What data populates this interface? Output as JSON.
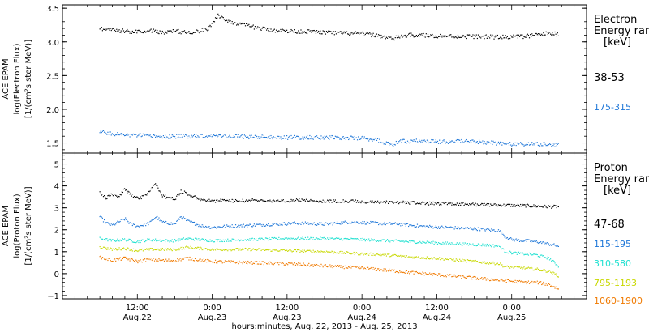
{
  "chart_data": {
    "type": "scatter",
    "x_axis": {
      "label": "hours:minutes, Aug. 22, 2013 - Aug. 25, 2013",
      "range_hours": [
        0,
        84
      ],
      "data_start_hour": 6.0,
      "data_end_hour": 79.5,
      "ticks": [
        {
          "hour": 12,
          "time": "12:00",
          "date": "Aug.22"
        },
        {
          "hour": 24,
          "time": "0:00",
          "date": "Aug.23"
        },
        {
          "hour": 36,
          "time": "12:00",
          "date": "Aug.23"
        },
        {
          "hour": 48,
          "time": "0:00",
          "date": "Aug.24"
        },
        {
          "hour": 60,
          "time": "12:00",
          "date": "Aug.24"
        },
        {
          "hour": 72,
          "time": "0:00",
          "date": "Aug.25"
        }
      ]
    },
    "panels": [
      {
        "id": "electron",
        "ylabel_lines": [
          "ACE EPAM",
          "log(Electron Flux)",
          "[1/(cm²s ster MeV)]"
        ],
        "ylim": [
          1.35,
          3.55
        ],
        "yticks": [
          "1.5",
          "2.0",
          "2.5",
          "3.0",
          "3.5"
        ],
        "ytick_values": [
          1.5,
          2.0,
          2.5,
          3.0,
          3.5
        ],
        "legend_title": "Electron",
        "legend_subtitle": "Energy ran",
        "legend_unit": "[keV]",
        "series": [
          {
            "name": "38-53",
            "color": "#000000",
            "noise": 0.03,
            "points": [
              [
                6,
                3.2
              ],
              [
                8,
                3.18
              ],
              [
                10,
                3.16
              ],
              [
                12,
                3.15
              ],
              [
                14,
                3.17
              ],
              [
                16,
                3.14
              ],
              [
                18,
                3.16
              ],
              [
                20,
                3.14
              ],
              [
                22,
                3.16
              ],
              [
                23.5,
                3.2
              ],
              [
                24.3,
                3.32
              ],
              [
                25,
                3.4
              ],
              [
                26,
                3.33
              ],
              [
                28,
                3.27
              ],
              [
                30,
                3.23
              ],
              [
                33,
                3.18
              ],
              [
                36,
                3.16
              ],
              [
                40,
                3.15
              ],
              [
                44,
                3.13
              ],
              [
                48,
                3.12
              ],
              [
                50,
                3.1
              ],
              [
                52,
                3.07
              ],
              [
                53,
                3.04
              ],
              [
                54,
                3.08
              ],
              [
                56,
                3.1
              ],
              [
                60,
                3.09
              ],
              [
                64,
                3.08
              ],
              [
                66,
                3.08
              ],
              [
                70,
                3.07
              ],
              [
                74,
                3.08
              ],
              [
                76,
                3.1
              ],
              [
                78,
                3.13
              ],
              [
                79.5,
                3.11
              ]
            ]
          },
          {
            "name": "175-315",
            "color": "#1f77d8",
            "noise": 0.03,
            "points": [
              [
                6,
                1.68
              ],
              [
                8,
                1.63
              ],
              [
                12,
                1.61
              ],
              [
                16,
                1.59
              ],
              [
                20,
                1.6
              ],
              [
                24,
                1.61
              ],
              [
                30,
                1.59
              ],
              [
                36,
                1.58
              ],
              [
                42,
                1.58
              ],
              [
                48,
                1.57
              ],
              [
                50,
                1.55
              ],
              [
                52,
                1.5
              ],
              [
                53,
                1.47
              ],
              [
                54,
                1.52
              ],
              [
                56,
                1.53
              ],
              [
                60,
                1.52
              ],
              [
                64,
                1.52
              ],
              [
                68,
                1.51
              ],
              [
                72,
                1.48
              ],
              [
                76,
                1.48
              ],
              [
                79.5,
                1.47
              ]
            ]
          }
        ]
      },
      {
        "id": "proton",
        "ylabel_lines": [
          "ACE EPAM",
          "log(Proton Flux)",
          "[1/(cm²s ster MeV)]"
        ],
        "ylim": [
          -1.15,
          5.5
        ],
        "yticks": [
          "−1",
          "0",
          "1",
          "2",
          "3",
          "4",
          "5"
        ],
        "ytick_values": [
          -1,
          0,
          1,
          2,
          3,
          4,
          5
        ],
        "legend_title": "Proton",
        "legend_subtitle": "Energy ran",
        "legend_unit": "[keV]",
        "series": [
          {
            "name": "47-68",
            "color": "#000000",
            "noise": 0.07,
            "points": [
              [
                6,
                3.7
              ],
              [
                7,
                3.45
              ],
              [
                8,
                3.6
              ],
              [
                9,
                3.5
              ],
              [
                10,
                3.85
              ],
              [
                11,
                3.6
              ],
              [
                12,
                3.45
              ],
              [
                13,
                3.5
              ],
              [
                14,
                3.8
              ],
              [
                15,
                4.1
              ],
              [
                16,
                3.55
              ],
              [
                18,
                3.4
              ],
              [
                19,
                3.75
              ],
              [
                20,
                3.65
              ],
              [
                21,
                3.5
              ],
              [
                22,
                3.4
              ],
              [
                24,
                3.3
              ],
              [
                26,
                3.35
              ],
              [
                28,
                3.3
              ],
              [
                30,
                3.35
              ],
              [
                34,
                3.3
              ],
              [
                38,
                3.35
              ],
              [
                42,
                3.3
              ],
              [
                46,
                3.3
              ],
              [
                50,
                3.25
              ],
              [
                54,
                3.25
              ],
              [
                58,
                3.2
              ],
              [
                62,
                3.2
              ],
              [
                66,
                3.15
              ],
              [
                70,
                3.12
              ],
              [
                74,
                3.1
              ],
              [
                78,
                3.05
              ],
              [
                79.5,
                3.05
              ]
            ]
          },
          {
            "name": "115-195",
            "color": "#1f77d8",
            "noise": 0.07,
            "points": [
              [
                6,
                2.6
              ],
              [
                7,
                2.3
              ],
              [
                8,
                2.2
              ],
              [
                9,
                2.35
              ],
              [
                10,
                2.5
              ],
              [
                11,
                2.25
              ],
              [
                12,
                2.15
              ],
              [
                14,
                2.3
              ],
              [
                15,
                2.6
              ],
              [
                16,
                2.35
              ],
              [
                18,
                2.25
              ],
              [
                19,
                2.6
              ],
              [
                20,
                2.4
              ],
              [
                22,
                2.2
              ],
              [
                24,
                2.1
              ],
              [
                26,
                2.15
              ],
              [
                30,
                2.2
              ],
              [
                34,
                2.25
              ],
              [
                38,
                2.3
              ],
              [
                42,
                2.25
              ],
              [
                46,
                2.35
              ],
              [
                50,
                2.3
              ],
              [
                54,
                2.25
              ],
              [
                58,
                2.15
              ],
              [
                62,
                2.1
              ],
              [
                66,
                2.05
              ],
              [
                68,
                2.0
              ],
              [
                70,
                1.95
              ],
              [
                71,
                1.7
              ],
              [
                72,
                1.55
              ],
              [
                74,
                1.5
              ],
              [
                76,
                1.45
              ],
              [
                78,
                1.35
              ],
              [
                79.5,
                1.25
              ]
            ]
          },
          {
            "name": "310-580",
            "color": "#1fe0d0",
            "noise": 0.06,
            "points": [
              [
                6,
                1.6
              ],
              [
                8,
                1.5
              ],
              [
                10,
                1.55
              ],
              [
                12,
                1.45
              ],
              [
                14,
                1.55
              ],
              [
                16,
                1.5
              ],
              [
                18,
                1.5
              ],
              [
                20,
                1.6
              ],
              [
                24,
                1.5
              ],
              [
                30,
                1.55
              ],
              [
                36,
                1.6
              ],
              [
                42,
                1.6
              ],
              [
                48,
                1.55
              ],
              [
                52,
                1.5
              ],
              [
                56,
                1.45
              ],
              [
                60,
                1.4
              ],
              [
                64,
                1.35
              ],
              [
                68,
                1.3
              ],
              [
                70,
                1.25
              ],
              [
                71,
                1.0
              ],
              [
                72,
                0.95
              ],
              [
                74,
                0.9
              ],
              [
                76,
                0.85
              ],
              [
                78,
                0.7
              ],
              [
                79.5,
                0.35
              ]
            ]
          },
          {
            "name": "795-1193",
            "color": "#c8d800",
            "noise": 0.06,
            "points": [
              [
                6,
                1.2
              ],
              [
                8,
                1.1
              ],
              [
                10,
                1.15
              ],
              [
                12,
                1.05
              ],
              [
                14,
                1.1
              ],
              [
                16,
                1.1
              ],
              [
                18,
                1.1
              ],
              [
                20,
                1.2
              ],
              [
                24,
                1.1
              ],
              [
                30,
                1.1
              ],
              [
                36,
                1.05
              ],
              [
                42,
                1.0
              ],
              [
                48,
                0.9
              ],
              [
                52,
                0.85
              ],
              [
                56,
                0.75
              ],
              [
                60,
                0.7
              ],
              [
                64,
                0.6
              ],
              [
                68,
                0.5
              ],
              [
                70,
                0.45
              ],
              [
                71,
                0.3
              ],
              [
                72,
                0.3
              ],
              [
                74,
                0.25
              ],
              [
                76,
                0.2
              ],
              [
                78,
                0.1
              ],
              [
                79.5,
                -0.1
              ]
            ]
          },
          {
            "name": "1060-1900",
            "color": "#f07a00",
            "noise": 0.07,
            "points": [
              [
                6,
                0.75
              ],
              [
                8,
                0.6
              ],
              [
                10,
                0.7
              ],
              [
                12,
                0.55
              ],
              [
                14,
                0.65
              ],
              [
                16,
                0.6
              ],
              [
                18,
                0.6
              ],
              [
                20,
                0.7
              ],
              [
                24,
                0.55
              ],
              [
                30,
                0.5
              ],
              [
                36,
                0.45
              ],
              [
                42,
                0.35
              ],
              [
                48,
                0.25
              ],
              [
                52,
                0.15
              ],
              [
                56,
                0.05
              ],
              [
                60,
                -0.05
              ],
              [
                64,
                -0.15
              ],
              [
                68,
                -0.25
              ],
              [
                70,
                -0.3
              ],
              [
                72,
                -0.35
              ],
              [
                74,
                -0.4
              ],
              [
                76,
                -0.4
              ],
              [
                78,
                -0.5
              ],
              [
                79.5,
                -0.7
              ]
            ]
          }
        ]
      }
    ]
  }
}
